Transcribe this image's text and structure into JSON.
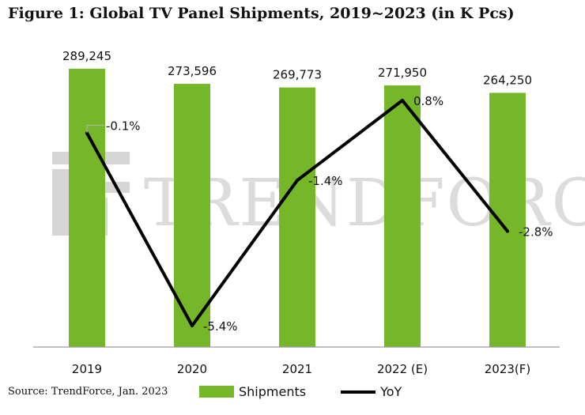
{
  "title": "Figure 1: Global TV Panel Shipments, 2019~2023 (in K Pcs)",
  "source": "Source: TrendForce, Jan. 2023",
  "watermark": "TRENDFORCE",
  "colors": {
    "bar": "#76b72a",
    "line": "#000000",
    "axis": "#9a9a9a",
    "watermark": "#dcdcdc"
  },
  "legend": {
    "bar_label": "Shipments",
    "line_label": "YoY"
  },
  "chart_data": {
    "type": "bar",
    "title": "Figure 1: Global TV Panel Shipments, 2019~2023 (in K Pcs)",
    "categories": [
      "2019",
      "2020",
      "2021",
      "2022 (E)",
      "2023(F)"
    ],
    "series": [
      {
        "name": "Shipments",
        "type": "bar",
        "values": [
          289245,
          273596,
          269773,
          271950,
          264250
        ],
        "labels": [
          "289,245",
          "273,596",
          "269,773",
          "271,950",
          "264,250"
        ]
      },
      {
        "name": "YoY",
        "type": "line",
        "values": [
          -0.1,
          -5.4,
          -1.4,
          0.8,
          -2.8
        ],
        "labels": [
          "-0.1%",
          "-5.4%",
          "-1.4%",
          "0.8%",
          "-2.8%"
        ]
      }
    ],
    "ylim_bar": [
      0,
      300000
    ],
    "ylim_line": [
      -5.7,
      1.6
    ],
    "xlabel": "",
    "ylabel": "",
    "grid": false
  }
}
